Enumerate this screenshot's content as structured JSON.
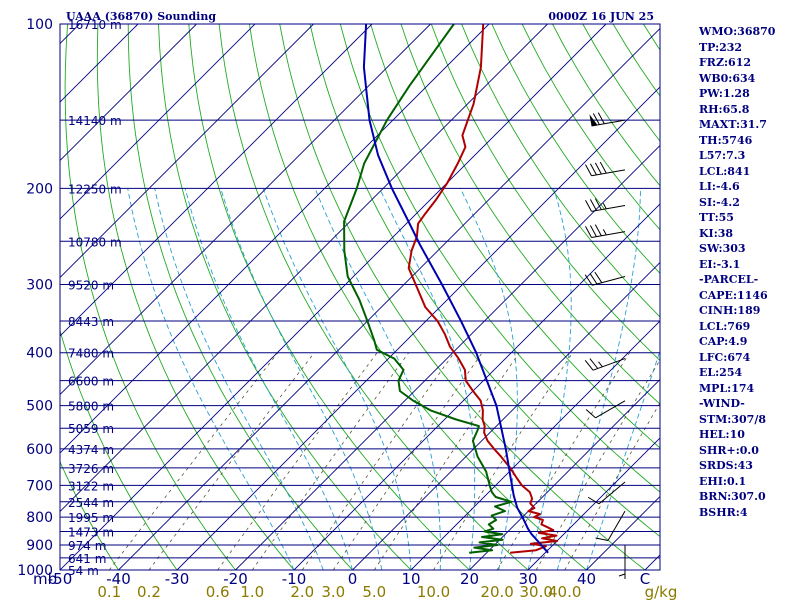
{
  "header": {
    "station": "UAAA (36870) Sounding",
    "datetime": "0000Z 16 JUN 25"
  },
  "indices": [
    "WMO:36870",
    "TP:232",
    "FRZ:612",
    "WB0:634",
    "PW:1.28",
    "RH:65.8",
    "MAXT:31.7",
    "TH:5746",
    "L57:7.3",
    "LCL:841",
    "LI:-4.6",
    "SI:-4.2",
    "TT:55",
    "KI:38",
    "SW:303",
    "EI:-3.1",
    "-PARCEL-",
    "CAPE:1146",
    "CINH:189",
    "LCL:769",
    "CAP:4.9",
    "LFC:674",
    "EL:254",
    "MPL:174",
    "-WIND-",
    "STM:307/8",
    "HEL:10",
    "SHR+:0.0",
    "SRDS:43",
    "EHI:0.1",
    "BRN:307.0",
    "BSHR:4"
  ],
  "colors": {
    "isobar": "#000080",
    "isotherm": "#000080",
    "dry_adiabat": "#22aa22",
    "moist_adiabat": "#2aa0d0",
    "mixing_ratio": "#555533",
    "temperature": "#b00000",
    "dewpoint": "#006000",
    "parcel": "#0000b0",
    "wind": "#000000"
  },
  "chart_data": {
    "type": "line",
    "diagram": "skew-t log-p",
    "pressure_axis": {
      "unit": "mb",
      "tick_labels": [
        "100",
        "200",
        "300",
        "400",
        "500",
        "600",
        "700",
        "800",
        "900",
        "1000"
      ],
      "range": [
        100,
        1000
      ]
    },
    "isobar_levels": [
      {
        "p": 100,
        "height": "16710 m"
      },
      {
        "p": 150,
        "height": "14140 m"
      },
      {
        "p": 200,
        "height": "12250 m"
      },
      {
        "p": 250,
        "height": "10780 m"
      },
      {
        "p": 300,
        "height": "9520 m"
      },
      {
        "p": 350,
        "height": "8443 m"
      },
      {
        "p": 400,
        "height": "7480 m"
      },
      {
        "p": 450,
        "height": "6600 m"
      },
      {
        "p": 500,
        "height": "5800 m"
      },
      {
        "p": 550,
        "height": "5059 m"
      },
      {
        "p": 600,
        "height": "4374 m"
      },
      {
        "p": 650,
        "height": "3726 m"
      },
      {
        "p": 700,
        "height": "3122 m"
      },
      {
        "p": 750,
        "height": "2544 m"
      },
      {
        "p": 800,
        "height": "1995 m"
      },
      {
        "p": 850,
        "height": "1473 m"
      },
      {
        "p": 900,
        "height": "974 m"
      },
      {
        "p": 950,
        "height": "641 m"
      },
      {
        "p": 1000,
        "height": "54 m"
      }
    ],
    "temperature_axis": {
      "unit_label": "mb",
      "tick_labels": [
        "-50",
        "-40",
        "-30",
        "-20",
        "-10",
        "0",
        "10",
        "20",
        "30",
        "40",
        "C"
      ],
      "tick_values": [
        -50,
        -40,
        -30,
        -20,
        -10,
        0,
        10,
        20,
        30,
        40,
        50
      ],
      "range_at_1000mb": [
        -50,
        50
      ]
    },
    "mixing_ratio_axis": {
      "unit": "g/kg",
      "tick_labels": [
        "0.1",
        "0.2",
        "0.6",
        "1.0",
        "2.0",
        "3.0",
        "5.0",
        "10.0",
        "20.0",
        "30.0",
        "40.0"
      ],
      "tick_values": [
        0.1,
        0.2,
        0.6,
        1.0,
        2.0,
        3.0,
        5.0,
        10.0,
        20.0,
        30.0,
        40.0
      ]
    },
    "series": [
      {
        "key": "temperature",
        "points": [
          {
            "p": 930,
            "t": 24.0
          },
          {
            "p": 920,
            "t": 28.0
          },
          {
            "p": 905,
            "t": 29.0
          },
          {
            "p": 895,
            "t": 26.0
          },
          {
            "p": 885,
            "t": 30.0
          },
          {
            "p": 875,
            "t": 27.0
          },
          {
            "p": 865,
            "t": 29.0
          },
          {
            "p": 855,
            "t": 25.5
          },
          {
            "p": 845,
            "t": 27.5
          },
          {
            "p": 835,
            "t": 26.0
          },
          {
            "p": 825,
            "t": 24.5
          },
          {
            "p": 810,
            "t": 24.0
          },
          {
            "p": 800,
            "t": 22.0
          },
          {
            "p": 790,
            "t": 22.5
          },
          {
            "p": 780,
            "t": 20.0
          },
          {
            "p": 770,
            "t": 20.5
          },
          {
            "p": 755,
            "t": 19.0
          },
          {
            "p": 740,
            "t": 18.5
          },
          {
            "p": 720,
            "t": 17.0
          },
          {
            "p": 700,
            "t": 14.5
          },
          {
            "p": 680,
            "t": 12.5
          },
          {
            "p": 650,
            "t": 9.5
          },
          {
            "p": 620,
            "t": 6.0
          },
          {
            "p": 600,
            "t": 3.5
          },
          {
            "p": 580,
            "t": 1.0
          },
          {
            "p": 560,
            "t": -1.0
          },
          {
            "p": 545,
            "t": -2.0
          },
          {
            "p": 530,
            "t": -3.5
          },
          {
            "p": 510,
            "t": -5.0
          },
          {
            "p": 490,
            "t": -7.0
          },
          {
            "p": 470,
            "t": -10.0
          },
          {
            "p": 450,
            "t": -13.0
          },
          {
            "p": 430,
            "t": -15.0
          },
          {
            "p": 410,
            "t": -18.0
          },
          {
            "p": 390,
            "t": -21.5
          },
          {
            "p": 370,
            "t": -24.5
          },
          {
            "p": 350,
            "t": -28.0
          },
          {
            "p": 330,
            "t": -32.5
          },
          {
            "p": 300,
            "t": -38.0
          },
          {
            "p": 280,
            "t": -42.0
          },
          {
            "p": 260,
            "t": -44.5
          },
          {
            "p": 245,
            "t": -46.0
          },
          {
            "p": 232,
            "t": -48.0
          },
          {
            "p": 222,
            "t": -48.5
          },
          {
            "p": 210,
            "t": -49.0
          },
          {
            "p": 195,
            "t": -50.0
          },
          {
            "p": 180,
            "t": -51.5
          },
          {
            "p": 168,
            "t": -53.0
          },
          {
            "p": 160,
            "t": -55.5
          },
          {
            "p": 140,
            "t": -59.0
          },
          {
            "p": 120,
            "t": -64.0
          },
          {
            "p": 100,
            "t": -71.0
          }
        ]
      },
      {
        "key": "dewpoint",
        "points": [
          {
            "p": 930,
            "t": 17.0
          },
          {
            "p": 920,
            "t": 20.5
          },
          {
            "p": 910,
            "t": 17.0
          },
          {
            "p": 900,
            "t": 20.5
          },
          {
            "p": 890,
            "t": 17.0
          },
          {
            "p": 880,
            "t": 20.5
          },
          {
            "p": 870,
            "t": 16.5
          },
          {
            "p": 860,
            "t": 19.5
          },
          {
            "p": 850,
            "t": 16.0
          },
          {
            "p": 840,
            "t": 17.0
          },
          {
            "p": 825,
            "t": 15.5
          },
          {
            "p": 810,
            "t": 16.0
          },
          {
            "p": 795,
            "t": 14.5
          },
          {
            "p": 780,
            "t": 16.0
          },
          {
            "p": 765,
            "t": 13.5
          },
          {
            "p": 750,
            "t": 15.5
          },
          {
            "p": 735,
            "t": 12.0
          },
          {
            "p": 720,
            "t": 10.5
          },
          {
            "p": 700,
            "t": 9.0
          },
          {
            "p": 660,
            "t": 6.0
          },
          {
            "p": 620,
            "t": 2.0
          },
          {
            "p": 580,
            "t": -1.5
          },
          {
            "p": 555,
            "t": -2.5
          },
          {
            "p": 545,
            "t": -3.0
          },
          {
            "p": 530,
            "t": -8.0
          },
          {
            "p": 510,
            "t": -14.0
          },
          {
            "p": 490,
            "t": -18.5
          },
          {
            "p": 470,
            "t": -22.5
          },
          {
            "p": 450,
            "t": -24.5
          },
          {
            "p": 430,
            "t": -25.5
          },
          {
            "p": 410,
            "t": -29.0
          },
          {
            "p": 395,
            "t": -33.5
          },
          {
            "p": 380,
            "t": -35.5
          },
          {
            "p": 350,
            "t": -40.0
          },
          {
            "p": 320,
            "t": -45.0
          },
          {
            "p": 290,
            "t": -51.0
          },
          {
            "p": 260,
            "t": -56.0
          },
          {
            "p": 230,
            "t": -61.0
          },
          {
            "p": 200,
            "t": -64.5
          },
          {
            "p": 180,
            "t": -67.5
          },
          {
            "p": 150,
            "t": -71.0
          },
          {
            "p": 130,
            "t": -73.0
          },
          {
            "p": 100,
            "t": -76.0
          }
        ]
      },
      {
        "key": "parcel",
        "points": [
          {
            "p": 930,
            "t": 30.5
          },
          {
            "p": 900,
            "t": 28.0
          },
          {
            "p": 860,
            "t": 24.5
          },
          {
            "p": 841,
            "t": 23.0
          },
          {
            "p": 800,
            "t": 20.0
          },
          {
            "p": 769,
            "t": 17.5
          },
          {
            "p": 730,
            "t": 14.8
          },
          {
            "p": 700,
            "t": 12.8
          },
          {
            "p": 674,
            "t": 11.0
          },
          {
            "p": 600,
            "t": 5.5
          },
          {
            "p": 500,
            "t": -3.5
          },
          {
            "p": 400,
            "t": -16.0
          },
          {
            "p": 350,
            "t": -24.0
          },
          {
            "p": 300,
            "t": -33.5
          },
          {
            "p": 254,
            "t": -44.0
          },
          {
            "p": 230,
            "t": -50.0
          },
          {
            "p": 200,
            "t": -58.5
          },
          {
            "p": 174,
            "t": -66.5
          },
          {
            "p": 150,
            "t": -74.0
          },
          {
            "p": 120,
            "t": -84.0
          },
          {
            "p": 100,
            "t": -91.0
          }
        ]
      }
    ],
    "wind_barbs": [
      {
        "p": 150,
        "dir": 260,
        "kt": 70
      },
      {
        "p": 185,
        "dir": 260,
        "kt": 40
      },
      {
        "p": 215,
        "dir": 260,
        "kt": 35
      },
      {
        "p": 240,
        "dir": 260,
        "kt": 35
      },
      {
        "p": 290,
        "dir": 255,
        "kt": 30
      },
      {
        "p": 410,
        "dir": 250,
        "kt": 25
      },
      {
        "p": 490,
        "dir": 240,
        "kt": 10
      },
      {
        "p": 690,
        "dir": 230,
        "kt": 10
      },
      {
        "p": 780,
        "dir": 210,
        "kt": 10
      },
      {
        "p": 900,
        "dir": 180,
        "kt": 5
      }
    ],
    "grid": true
  }
}
